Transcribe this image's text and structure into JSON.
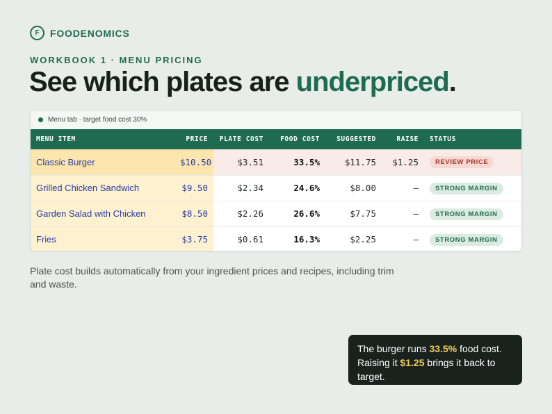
{
  "brand": {
    "logo_letter": "F",
    "name": "FOODENOMICS"
  },
  "eyebrow": "WORKBOOK 1 · MENU PRICING",
  "headline": {
    "prefix": "See which plates are ",
    "accent": "underpriced",
    "suffix": "."
  },
  "card": {
    "tab_label": "Menu tab · target food cost 30%",
    "columns": [
      "MENU ITEM",
      "PRICE",
      "PLATE COST",
      "FOOD COST",
      "SUGGESTED",
      "RAISE",
      "STATUS"
    ],
    "rows": [
      {
        "item": "Classic Burger",
        "price": "$10.50",
        "plate_cost": "$3.51",
        "food_cost": "33.5%",
        "suggested": "$11.75",
        "raise": "$1.25",
        "status": "REVIEW PRICE",
        "flagged": true
      },
      {
        "item": "Grilled Chicken Sandwich",
        "price": "$9.50",
        "plate_cost": "$2.34",
        "food_cost": "24.6%",
        "suggested": "$8.00",
        "raise": "–",
        "status": "STRONG MARGIN",
        "flagged": false
      },
      {
        "item": "Garden Salad with Chicken",
        "price": "$8.50",
        "plate_cost": "$2.26",
        "food_cost": "26.6%",
        "suggested": "$7.75",
        "raise": "–",
        "status": "STRONG MARGIN",
        "flagged": false
      },
      {
        "item": "Fries",
        "price": "$3.75",
        "plate_cost": "$0.61",
        "food_cost": "16.3%",
        "suggested": "$2.25",
        "raise": "–",
        "status": "STRONG MARGIN",
        "flagged": false
      }
    ]
  },
  "footnote": "Plate cost builds automatically from your ingredient prices and recipes, including trim and waste.",
  "callout": {
    "t1": "The burger runs ",
    "h1": "33.5%",
    "t2": " food cost. Raising it ",
    "h2": "$1.25",
    "t3": " brings it back to target."
  },
  "colors": {
    "accent": "#1e6b52",
    "highlight": "#f2cf5b",
    "flag_bg": "#f9ebe7",
    "price_bg": "#fdf1cf"
  }
}
